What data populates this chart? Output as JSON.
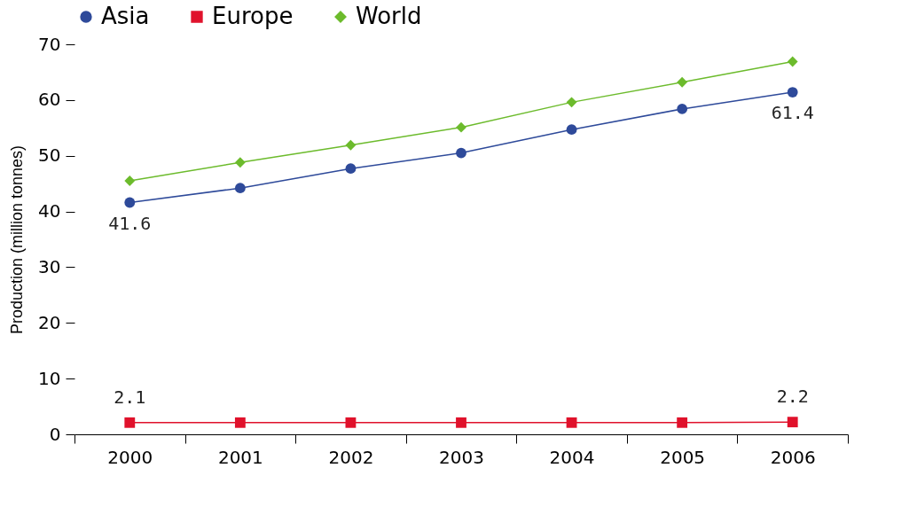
{
  "chart_data": {
    "type": "line",
    "ylabel": "Production (million tonnes)",
    "categories": [
      "2000",
      "2001",
      "2002",
      "2003",
      "2004",
      "2005",
      "2006"
    ],
    "series": [
      {
        "name": "Asia",
        "color": "#2e4a9a",
        "marker": "circle",
        "values": [
          41.6,
          44.2,
          47.7,
          50.5,
          54.7,
          58.4,
          61.4
        ],
        "value_labels": [
          "41.6",
          null,
          null,
          null,
          null,
          null,
          "61.4"
        ]
      },
      {
        "name": "Europe",
        "color": "#e0112b",
        "marker": "square",
        "values": [
          2.1,
          2.1,
          2.1,
          2.1,
          2.1,
          2.1,
          2.2
        ],
        "value_labels": [
          "2.1",
          null,
          null,
          null,
          null,
          null,
          "2.2"
        ]
      },
      {
        "name": "World",
        "color": "#6cbb2c",
        "marker": "diamond",
        "values": [
          45.5,
          48.8,
          51.9,
          55.1,
          59.6,
          63.2,
          66.9
        ]
      }
    ],
    "ylim": [
      0,
      70
    ],
    "yticks": [
      0,
      10,
      20,
      30,
      40,
      50,
      60,
      70
    ],
    "grid": false,
    "legend": "top"
  }
}
